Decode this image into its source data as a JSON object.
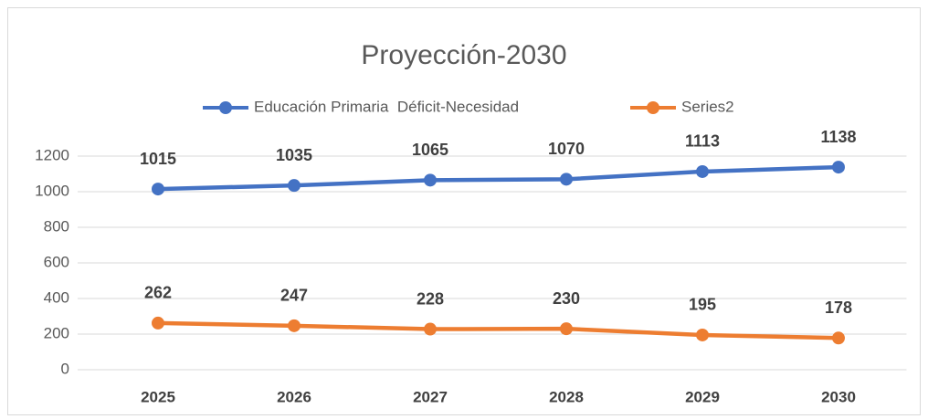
{
  "chart_data": {
    "type": "line",
    "title": "Proyección-2030",
    "categories": [
      "2025",
      "2026",
      "2027",
      "2028",
      "2029",
      "2030"
    ],
    "series": [
      {
        "name": "Educación Primaria  Déficit-Necesidad",
        "color": "#4472c4",
        "values": [
          1015,
          1035,
          1065,
          1070,
          1113,
          1138
        ]
      },
      {
        "name": "Series2",
        "color": "#ed7d31",
        "values": [
          262,
          247,
          228,
          230,
          195,
          178
        ]
      }
    ],
    "ylim": [
      0,
      1200
    ],
    "yticks": [
      0,
      200,
      400,
      600,
      800,
      1000,
      1200
    ],
    "grid": true,
    "legend": "top"
  }
}
